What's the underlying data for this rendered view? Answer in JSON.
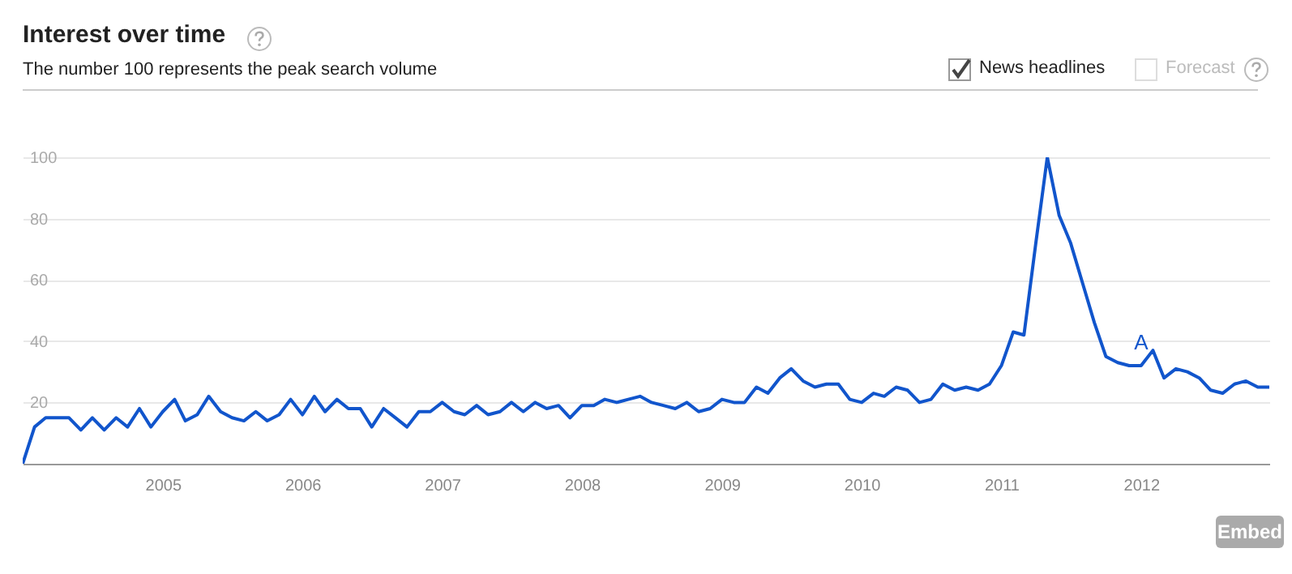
{
  "chart_data": {
    "type": "line",
    "title": "Interest over time",
    "subtitle": "The number 100 represents the peak search volume",
    "x": [
      "2004-01",
      "2004-02",
      "2004-03",
      "2004-04",
      "2004-05",
      "2004-06",
      "2004-07",
      "2004-08",
      "2004-09",
      "2004-10",
      "2004-11",
      "2004-12",
      "2005-01",
      "2005-02",
      "2005-03",
      "2005-04",
      "2005-05",
      "2005-06",
      "2005-07",
      "2005-08",
      "2005-09",
      "2005-10",
      "2005-11",
      "2005-12",
      "2006-01",
      "2006-02",
      "2006-03",
      "2006-04",
      "2006-05",
      "2006-06",
      "2006-07",
      "2006-08",
      "2006-09",
      "2006-10",
      "2006-11",
      "2006-12",
      "2007-01",
      "2007-02",
      "2007-03",
      "2007-04",
      "2007-05",
      "2007-06",
      "2007-07",
      "2007-08",
      "2007-09",
      "2007-10",
      "2007-11",
      "2007-12",
      "2008-01",
      "2008-02",
      "2008-03",
      "2008-04",
      "2008-05",
      "2008-06",
      "2008-07",
      "2008-08",
      "2008-09",
      "2008-10",
      "2008-11",
      "2008-12",
      "2009-01",
      "2009-02",
      "2009-03",
      "2009-04",
      "2009-05",
      "2009-06",
      "2009-07",
      "2009-08",
      "2009-09",
      "2009-10",
      "2009-11",
      "2009-12",
      "2010-01",
      "2010-02",
      "2010-03",
      "2010-04",
      "2010-05",
      "2010-06",
      "2010-07",
      "2010-08",
      "2010-09",
      "2010-10",
      "2010-11",
      "2010-12",
      "2011-01",
      "2011-02",
      "2011-03",
      "2011-04",
      "2011-05",
      "2011-06",
      "2011-07",
      "2011-08",
      "2011-09",
      "2011-10",
      "2011-11",
      "2011-12",
      "2012-01",
      "2012-02",
      "2012-03",
      "2012-04",
      "2012-05",
      "2012-06",
      "2012-07",
      "2012-08",
      "2012-09",
      "2012-10",
      "2012-11",
      "2012-12"
    ],
    "series": [
      {
        "color": "#1155cc",
        "values": [
          0,
          12,
          15,
          15,
          15,
          11,
          15,
          11,
          15,
          12,
          18,
          12,
          17,
          21,
          14,
          16,
          22,
          17,
          15,
          14,
          17,
          14,
          16,
          21,
          16,
          22,
          17,
          21,
          18,
          18,
          12,
          18,
          15,
          12,
          17,
          17,
          20,
          17,
          16,
          19,
          16,
          17,
          20,
          17,
          20,
          18,
          19,
          15,
          19,
          19,
          21,
          20,
          21,
          22,
          20,
          19,
          18,
          20,
          17,
          18,
          21,
          20,
          20,
          25,
          23,
          28,
          31,
          27,
          25,
          26,
          26,
          21,
          20,
          23,
          22,
          25,
          24,
          20,
          21,
          26,
          24,
          25,
          24,
          26,
          32,
          43,
          42,
          72,
          100,
          81,
          72,
          59,
          46,
          35,
          33,
          32,
          32,
          37,
          28,
          31,
          30,
          28,
          24,
          23,
          26,
          27,
          25,
          25
        ]
      }
    ],
    "xlim": [
      "2004-01",
      "2012-12"
    ],
    "xticks": [
      {
        "value": "2005-01",
        "label": "2005"
      },
      {
        "value": "2006-01",
        "label": "2006"
      },
      {
        "value": "2007-01",
        "label": "2007"
      },
      {
        "value": "2008-01",
        "label": "2008"
      },
      {
        "value": "2009-01",
        "label": "2009"
      },
      {
        "value": "2010-01",
        "label": "2010"
      },
      {
        "value": "2011-01",
        "label": "2011"
      },
      {
        "value": "2012-01",
        "label": "2012"
      }
    ],
    "ylim": [
      0,
      100
    ],
    "yticks": [
      20,
      40,
      60,
      80,
      100
    ],
    "grid": "y",
    "marker": "none",
    "line_style": "solid",
    "annotations": [
      "News headlines",
      "Forecast",
      "Embed",
      {
        "text": "A",
        "x": "2012-01",
        "y": 32
      }
    ]
  }
}
